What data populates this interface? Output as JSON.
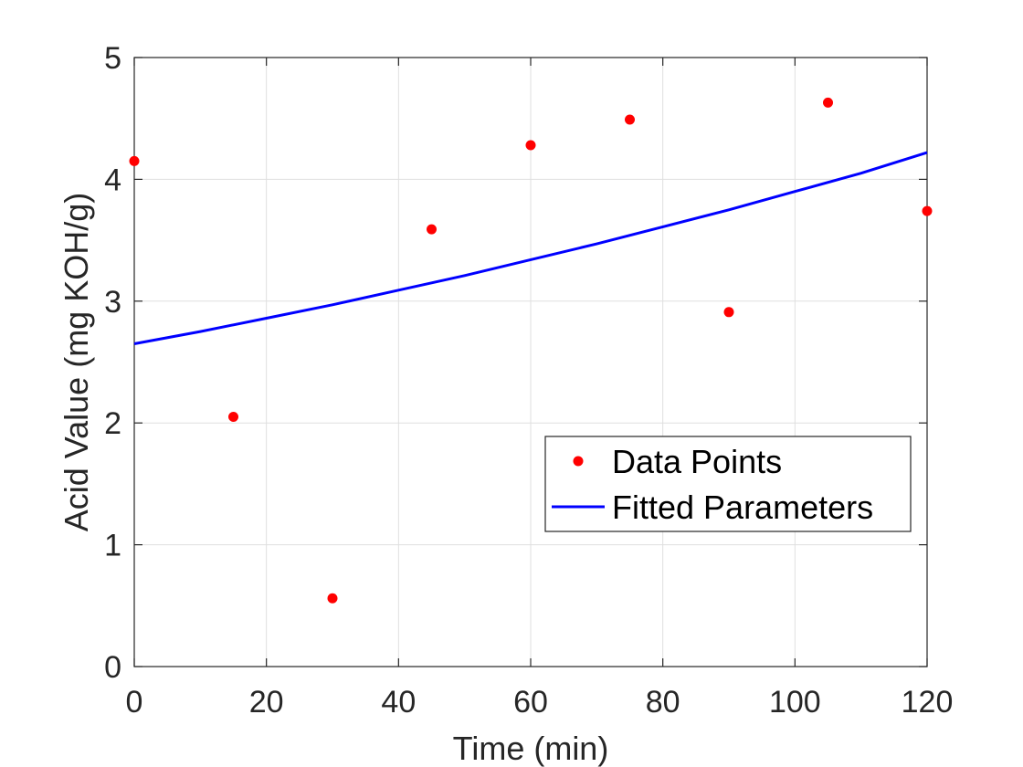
{
  "chart_data": {
    "type": "scatter",
    "xlabel": "Time (min)",
    "ylabel": "Acid Value (mg KOH/g)",
    "xlim": [
      0,
      120
    ],
    "ylim": [
      0,
      5
    ],
    "xticks": [
      "0",
      "20",
      "40",
      "60",
      "80",
      "100",
      "120"
    ],
    "yticks": [
      "0",
      "1",
      "2",
      "3",
      "4",
      "5"
    ],
    "grid": true,
    "legend_position": "lower-right",
    "series": [
      {
        "name": "Data Points",
        "kind": "scatter",
        "color": "#ff0000",
        "x": [
          0,
          15,
          30,
          45,
          60,
          75,
          90,
          105,
          120
        ],
        "y": [
          4.15,
          2.05,
          0.56,
          3.59,
          4.28,
          4.49,
          2.91,
          4.63,
          3.74
        ]
      },
      {
        "name": "Fitted Parameters",
        "kind": "line",
        "color": "#0000ff",
        "x": [
          0,
          10,
          20,
          30,
          40,
          50,
          60,
          70,
          80,
          90,
          100,
          110,
          120
        ],
        "y": [
          2.65,
          2.75,
          2.86,
          2.97,
          3.09,
          3.21,
          3.34,
          3.47,
          3.61,
          3.75,
          3.9,
          4.05,
          4.22
        ]
      }
    ]
  }
}
